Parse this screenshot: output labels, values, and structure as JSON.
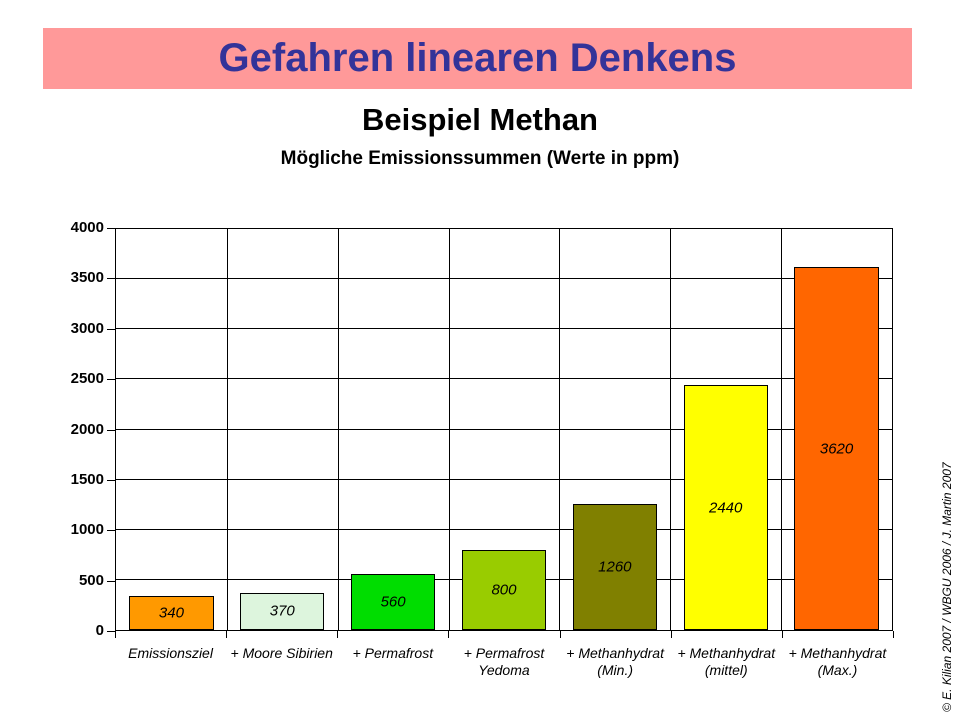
{
  "slide": {
    "banner_title": "Gefahren linearen Denkens",
    "subtitle": "Beispiel Methan",
    "copyright": "© E. Kilian 2007 / WBGU 2006 / J. Martin 2007"
  },
  "colors": {
    "banner_bg": "#FF9999",
    "banner_text": "#333399",
    "grid": "#000000",
    "plot_bg": "#FFFFFF"
  },
  "chart_data": {
    "type": "bar",
    "title": "Mögliche Emissionssummen (Werte in ppm)",
    "unit": "ppm",
    "categories": [
      [
        "Emissionsziel"
      ],
      [
        "+ Moore Sibirien"
      ],
      [
        "+ Permafrost"
      ],
      [
        "+ Permafrost",
        "Yedoma"
      ],
      [
        "+ Methanhydrat",
        "(Min.)"
      ],
      [
        "+ Methanhydrat",
        "(mittel)"
      ],
      [
        "+ Methanhydrat",
        "(Max.)"
      ]
    ],
    "values": [
      340,
      370,
      560,
      800,
      1260,
      2440,
      3620
    ],
    "value_labels": [
      "340",
      "370",
      "560",
      "800",
      "1260",
      "2440",
      "3620"
    ],
    "bar_colors": [
      "#FF9900",
      "#DDF5DD",
      "#00DD00",
      "#99CC00",
      "#808000",
      "#FFFF00",
      "#FF6600"
    ],
    "ylim": [
      0,
      4000
    ],
    "ytick_step": 500,
    "yticks": [
      0,
      500,
      1000,
      1500,
      2000,
      2500,
      3000,
      3500,
      4000
    ],
    "grid": true,
    "legend_position": "none"
  }
}
